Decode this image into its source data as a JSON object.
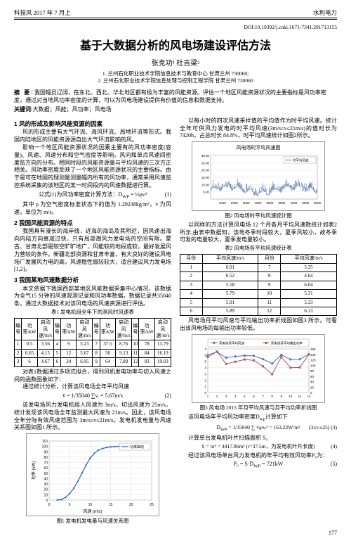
{
  "header": {
    "left": "科技风 2017 年 7 月上",
    "right": "水利电力"
  },
  "doi": "DOI:10.19392/j.cnki.1671-7341.201713155",
  "title": "基于大数据分析的风电场建设评估方法",
  "authors": "张克功¹  杜吉梁²",
  "affil1": "1. 兰州石化职业技术学院信息技术与教育中心  甘肃兰州  730060;",
  "affil2": "2. 兰州石化职业技术学院信息处理与控制工程学院  甘肃兰州  730060",
  "abstract_label": "摘  要:",
  "abstract": "我国幅员辽阔，在东北、西北、华北地区都有极为丰富的风能资源。评估一个地区风能资源状况的主要指标是风功率密度，通过对当地风功率密度的计算，可以为风电场建设提供有价值的信息和数据支持。",
  "kw_label": "关键词:",
  "keywords": "大数据；风能；风功率；风电场",
  "left": {
    "sec1": "1  风的形成及影响风能资源的因素",
    "p1a": "风的形成主要有大气环流、海风环流、局地环流等形式。我国内陆地区的风能资源源自出大气环流影响的风。",
    "p1b": "影响一个地区风能资源状况的因素主要有的风功率密度(容量)、风速、风速分布和空气密度等影响。风向和单点风速间密度监方向的分布。相同时段的风能资源量与平均风速的三次方正相关。风功率密度反映了一个地区风能资源状况的主要指标。由于是可在地固的理测量测量幅内所有的风功率，通常采用风速监控系统采集的该地区的某一时间段内的风速数据进行算。",
    "f1": "公式(1)为风功率密度计算方法：D<sub>WP</sub> = ½ρv³",
    "f1num": "(1)",
    "p1c": "其中 ρ 为空气密度标准状态下的值为 1.29238kg/m³，v 为风速，单位为 m/s。",
    "sec2": "2  我国风能资源的特点",
    "p2": "我国具有漫长的海岸线，近海的海岛及其附近，因风速出海向内陆方向衰减过快，只有局部潮风力发电场的空间有限。蒙古、甘肃北部是较空旷旷地广，风能较的地段或较，最好发展风力营较的条件。新疆北部资源和甘肃丰富，有大良好的建设风电场厂发展风力电的高，风速稳性弱较较大，适合建设风力发电场[1,2]。",
    "sec3": "3  我国某地风速数据分析",
    "p3a": "本文依据下我国西部某地区风能数据采集中心情况，该数据为全气15 分钟的风速观测记录和风功率数据。数据记录共35040 条。通过大数据技术对该风电场的风速资源进行评估。",
    "table1_caption": "表1 发电机组全年下的测风时风速表",
    "table1": {
      "header": [
        "编号",
        "功率/kW",
        "启动风速/m/s",
        "编号",
        "功率/kW",
        "启动风速/m/s",
        "编号",
        "功率/kW",
        "启动风速/m/s",
        "编号",
        "功率/kW",
        "启动风速/m/s"
      ],
      "rows": [
        [
          "1",
          "0.5",
          "3.56",
          "4",
          "9",
          "5.23",
          "7",
          "37.5",
          "8.76",
          "10",
          "78",
          "13.79"
        ],
        [
          "2",
          "0.65",
          "4.15",
          "5",
          "12",
          "5.67",
          "8",
          "50",
          "9.13",
          "11",
          "84",
          "16.19"
        ],
        [
          "3",
          "6",
          "4.67",
          "6",
          "24",
          "6.95",
          "9",
          "64",
          "7.89",
          "12",
          "93",
          "19.03"
        ]
      ]
    },
    "p3b": "对表1数据通过多项式拟合，得到风机发电功率与切入风速之间的函数图象如下：",
    "p3c": "通过统计分析，计算该风电场全年平均风速",
    "f2": "v̄ = 1/35040 ∑vᵢ = 5.67m/s",
    "f2num": "(2)",
    "p3d": "该发电场风力发电机组人风速为 3m/s，切出风速为 25m/s，统计发现该风电场全年监测最大风速为 21m/s。因此，该风电场全年分际有效风速范围为 3m/s≤v≤21m/s。发电机发电量与风速关系图如图1 所示。",
    "chart1": {
      "xlabel": "风速 (m/s)",
      "ylabel": "功率 (kW)",
      "xlim": [
        0,
        25
      ],
      "ylim": [
        0,
        110
      ],
      "xtick_step": 5,
      "ytick_step": 10,
      "x": [
        2,
        3,
        4,
        5,
        6,
        7,
        8,
        9,
        10,
        11,
        12,
        13,
        14,
        15,
        16,
        17,
        18,
        19,
        20,
        21
      ],
      "y": [
        0,
        1,
        5,
        12,
        22,
        35,
        50,
        65,
        78,
        87,
        93,
        96,
        98,
        99,
        99.5,
        100,
        100,
        100,
        100,
        100
      ],
      "line_color": "#2060c0",
      "bg": "#ffffff",
      "grid": "#d8d8d8",
      "legend": "功率曲线"
    },
    "chart1_caption": "图1 发电机发电量与风速关系图"
  },
  "right": {
    "p_r1": "以每小时的四次风速采样值的平均值作为时平均风速。统计全年可供风力发电的时平均风速(3m/s≤v≤21m/s)的值时长为 7420h，占总时长 84.8%，时平均风速统计如图2所示。",
    "chart2": {
      "title": "风电场时平均风速图",
      "xlabel": "",
      "ylabel": "",
      "xlim": [
        0,
        9000
      ],
      "ylim": [
        0,
        30
      ],
      "xticks": [
        1000,
        2000,
        3000,
        4000,
        5000,
        6000,
        7000,
        8000,
        9000
      ],
      "yticks": [
        5,
        10,
        15,
        20,
        25,
        30
      ],
      "series_color": "#5070b0",
      "bg": "#ffffff",
      "grid": "#e0e0e0",
      "legend": "时平均风速"
    },
    "chart2_caption": "图2 风电场时平均风速统计图",
    "p_r2": "以同样的方法计算风电场 12 个月各月平均风速数统计如表2 所示,由表中数据知，该地冬季时段较大，夏季风较小，故冬季可发的电量较大，夏季发电量较小。",
    "table2_caption": "表2 风电场各平均风速统计表",
    "table2": {
      "header": [
        "月份",
        "平均风速/m/s",
        "月份",
        "平均风速/m/s"
      ],
      "rows": [
        [
          "1",
          "6.01",
          "7",
          "5.35"
        ],
        [
          "2",
          "6.52",
          "8",
          "4.64"
        ],
        [
          "3",
          "5.58",
          "9",
          "6.04"
        ],
        [
          "4",
          "5.79",
          "10",
          "5.31"
        ],
        [
          "5",
          "5.91",
          "11",
          "5.33"
        ],
        [
          "6",
          "5.89",
          "12",
          "6.13"
        ]
      ]
    },
    "p_r3": "风电场月平均风速与平均输出功率折线图如图3 所示。可看出该风电场的每输出功率较低。",
    "chart3": {
      "legend": [
        "风电场月平均风速",
        "风电场月平均输出功率"
      ],
      "xlim": [
        1,
        12
      ],
      "months": [
        1,
        2,
        3,
        4,
        5,
        6,
        7,
        8,
        9,
        10,
        11,
        12
      ],
      "speed": [
        6.01,
        6.52,
        5.58,
        5.79,
        5.91,
        5.89,
        5.35,
        4.64,
        6.04,
        5.31,
        5.33,
        6.13
      ],
      "speed_ylim": [
        0,
        7
      ],
      "power_ylim": [
        0,
        160
      ],
      "power": [
        130,
        150,
        105,
        113,
        121,
        118,
        96,
        67,
        130,
        91,
        92,
        140
      ],
      "c1": "#4a6fb0",
      "c2": "#b05a5a",
      "bg": "#ffffff",
      "grid": "#e0e0e0"
    },
    "chart3_caption": "图3 风电场 2015 年月平均风速与月平均功率折线图",
    "p_r4": "该风电场年平均风功率密度D<sub>wp</sub>计算如下",
    "f3": "D̄<sub>WP</sub> = 1/35040 ∑ ½ρvᵢ³ = 163.22W/m²",
    "f3num": "(3≤vᵢ≤25)  (3)",
    "p_r5": "计算单台发电机叶片扫描面积 S₀",
    "f4": "S = πr² = 4417.86m² (r=37.5m，为发电机叶片长度)",
    "f4num": "(4)",
    "p_r6": "经过该风电场单台风力发电机的年平均有效风功率P₀为：",
    "f5": "P₀ = S·D̄<sub>WP</sub> = 721kW",
    "f5num": "(5)"
  },
  "page_number": "177"
}
